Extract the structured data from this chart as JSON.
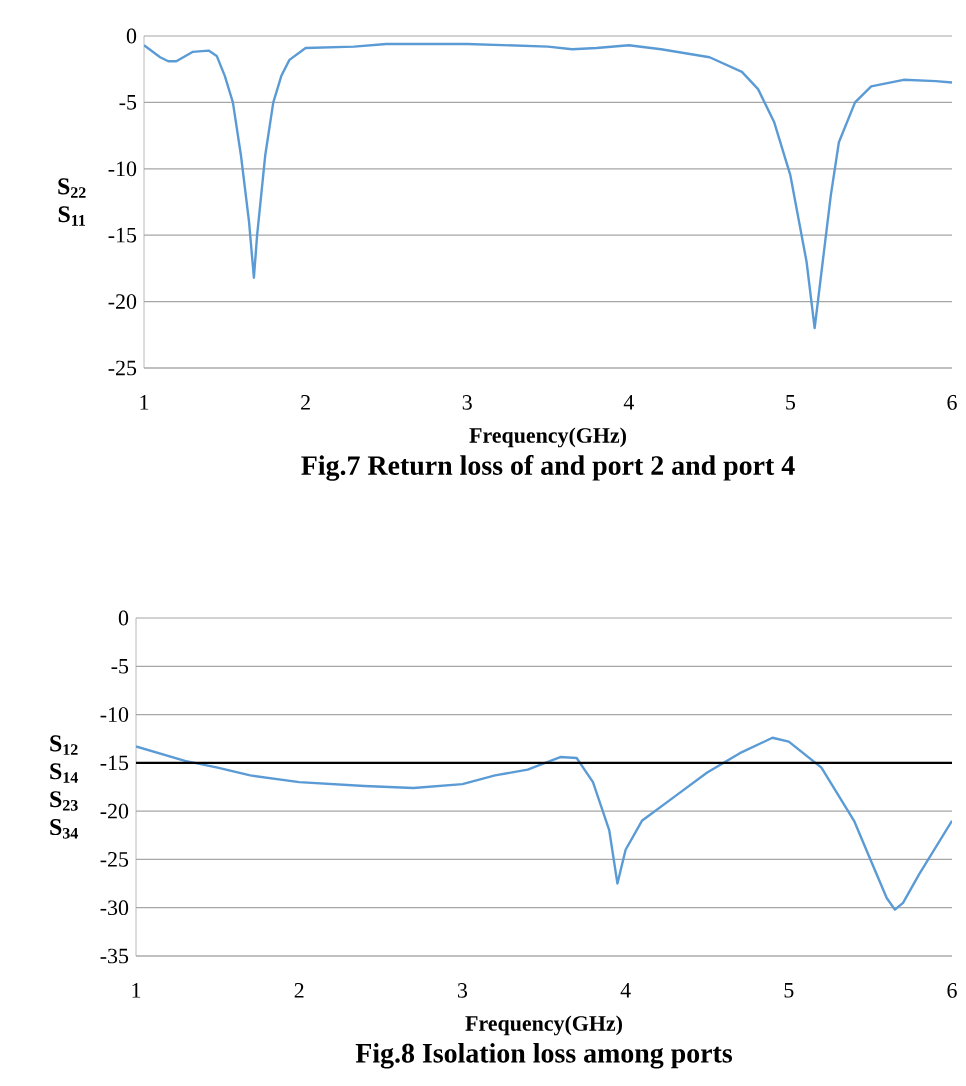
{
  "chart_data": [
    {
      "type": "line",
      "ylabel": "S$_{22}$ S$_{11}$",
      "xlabel": "Frequency(GHz)",
      "color": "#5b9bd5",
      "grid": "y",
      "annotations": [
        "Fig.7 Return loss of and port 2 and port 4"
      ],
      "xlim": [
        1,
        6
      ],
      "xticks": [
        1,
        2,
        3,
        4,
        5,
        6
      ],
      "ylim": [
        -25,
        0
      ],
      "yticks": [
        -25,
        -20,
        -15,
        -10,
        -5,
        0
      ],
      "x": [
        1.0,
        1.1,
        1.15,
        1.2,
        1.3,
        1.4,
        1.45,
        1.5,
        1.55,
        1.6,
        1.65,
        1.68,
        1.7,
        1.75,
        1.8,
        1.85,
        1.9,
        2.0,
        2.3,
        2.5,
        3.0,
        3.5,
        3.65,
        3.8,
        4.0,
        4.2,
        4.5,
        4.7,
        4.8,
        4.9,
        5.0,
        5.1,
        5.15,
        5.2,
        5.25,
        5.3,
        5.4,
        5.5,
        5.7,
        5.9,
        6.0
      ],
      "values": [
        -0.7,
        -1.6,
        -1.9,
        -1.9,
        -1.2,
        -1.1,
        -1.5,
        -3,
        -5,
        -9,
        -14,
        -18.2,
        -15,
        -9,
        -5,
        -3,
        -1.8,
        -0.9,
        -0.8,
        -0.6,
        -0.6,
        -0.8,
        -1.0,
        -0.9,
        -0.7,
        -1.0,
        -1.6,
        -2.7,
        -4,
        -6.5,
        -10.5,
        -17,
        -22,
        -17,
        -12,
        -8,
        -5,
        -3.8,
        -3.3,
        -3.4,
        -3.5
      ]
    },
    {
      "type": "line",
      "ylabel": "S$_{12}$ S$_{14}$ S$_{23}$ S$_{34}$",
      "xlabel": "Frequency(GHz)",
      "color": "#5b9bd5",
      "grid": "y",
      "annotations": [
        "Fig.8 Isolation loss among ports"
      ],
      "ref_lines": [
        {
          "axis": "y",
          "value": -15,
          "color": "#000000"
        }
      ],
      "xlim": [
        1,
        6
      ],
      "xticks": [
        1,
        2,
        3,
        4,
        5,
        6
      ],
      "ylim": [
        -35,
        0
      ],
      "yticks": [
        -35,
        -30,
        -25,
        -20,
        -15,
        -10,
        -5,
        0
      ],
      "x": [
        1.0,
        1.3,
        1.5,
        1.7,
        2.0,
        2.4,
        2.7,
        3.0,
        3.2,
        3.4,
        3.6,
        3.7,
        3.8,
        3.9,
        3.95,
        4.0,
        4.1,
        4.3,
        4.5,
        4.7,
        4.9,
        5.0,
        5.2,
        5.4,
        5.5,
        5.6,
        5.65,
        5.7,
        5.8,
        6.0
      ],
      "values": [
        -13.3,
        -14.8,
        -15.5,
        -16.3,
        -17,
        -17.4,
        -17.6,
        -17.2,
        -16.3,
        -15.7,
        -14.4,
        -14.5,
        -17,
        -22,
        -27.5,
        -24,
        -21,
        -18.5,
        -16,
        -14,
        -12.4,
        -12.8,
        -15.5,
        -21,
        -25,
        -29,
        -30.2,
        -29.5,
        -26.5,
        -21
      ]
    }
  ]
}
